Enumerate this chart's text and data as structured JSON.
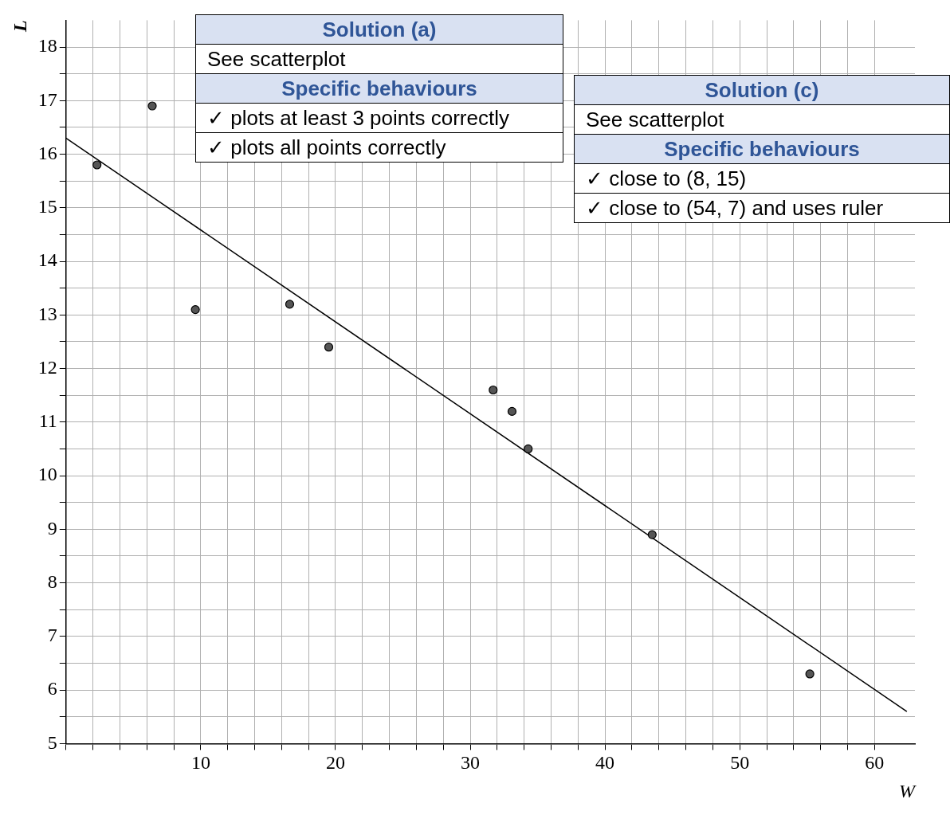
{
  "chart_data": {
    "type": "scatter",
    "xlabel": "W",
    "ylabel": "L",
    "xlim": [
      0,
      63
    ],
    "ylim": [
      5,
      18.5
    ],
    "xticks": [
      {
        "value": 0,
        "label": null
      },
      {
        "value": 2,
        "label": null
      },
      {
        "value": 4,
        "label": null
      },
      {
        "value": 6,
        "label": null
      },
      {
        "value": 8,
        "label": null
      },
      10,
      {
        "value": 12,
        "label": null
      },
      {
        "value": 14,
        "label": null
      },
      {
        "value": 16,
        "label": null
      },
      {
        "value": 18,
        "label": null
      },
      20,
      {
        "value": 22,
        "label": null
      },
      {
        "value": 24,
        "label": null
      },
      {
        "value": 26,
        "label": null
      },
      {
        "value": 28,
        "label": null
      },
      30,
      {
        "value": 32,
        "label": null
      },
      {
        "value": 34,
        "label": null
      },
      {
        "value": 36,
        "label": null
      },
      {
        "value": 38,
        "label": null
      },
      40,
      {
        "value": 42,
        "label": null
      },
      {
        "value": 44,
        "label": null
      },
      {
        "value": 46,
        "label": null
      },
      {
        "value": 48,
        "label": null
      },
      50,
      {
        "value": 52,
        "label": null
      },
      {
        "value": 54,
        "label": null
      },
      {
        "value": 56,
        "label": null
      },
      {
        "value": 58,
        "label": null
      },
      60
    ],
    "yticks": [
      5,
      {
        "value": 5.5,
        "label": null
      },
      6,
      {
        "value": 6.5,
        "label": null
      },
      7,
      {
        "value": 7.5,
        "label": null
      },
      8,
      {
        "value": 8.5,
        "label": null
      },
      9,
      {
        "value": 9.5,
        "label": null
      },
      10,
      {
        "value": 10.5,
        "label": null
      },
      11,
      {
        "value": 11.5,
        "label": null
      },
      12,
      {
        "value": 12.5,
        "label": null
      },
      13,
      {
        "value": 13.5,
        "label": null
      },
      14,
      {
        "value": 14.5,
        "label": null
      },
      15,
      {
        "value": 15.5,
        "label": null
      },
      16,
      {
        "value": 16.5,
        "label": null
      },
      17,
      {
        "value": 17.5,
        "label": null
      },
      18
    ],
    "grid": true,
    "legend": false,
    "series": [
      {
        "type": "scatter",
        "marker": "circle",
        "color": "#555555",
        "x": [
          2.3,
          6.4,
          9.6,
          16.6,
          19.5,
          31.7,
          33.1,
          34.3,
          43.5,
          55.2
        ],
        "values": [
          15.8,
          16.9,
          13.1,
          13.2,
          12.4,
          11.6,
          11.2,
          10.5,
          8.9,
          6.3
        ]
      },
      {
        "type": "line",
        "color": "#000000",
        "x": [
          0,
          62.4
        ],
        "values": [
          16.3,
          5.6
        ]
      }
    ],
    "annotations": [
      "Solution (a)",
      "See scatterplot",
      "Specific behaviours",
      "✓ plots at least 3 points correctly",
      "✓ plots all points correctly",
      "Solution (c)",
      "See scatterplot",
      "Specific behaviours",
      "✓ close to (8, 15)",
      "✓ close to (54, 7) and uses ruler"
    ]
  }
}
